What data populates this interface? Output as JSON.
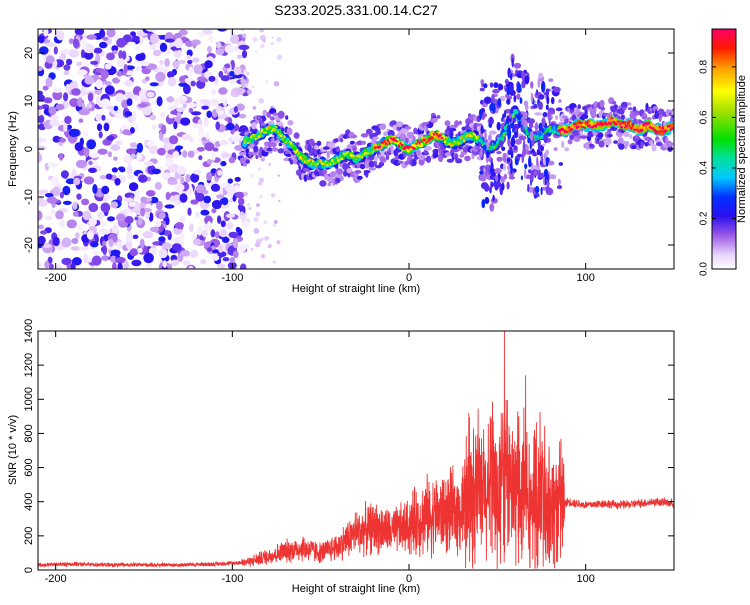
{
  "page": {
    "title": "S233.2025.331.00.14.C27"
  },
  "chart_data": [
    {
      "type": "heatmap",
      "title": "S233.2025.331.00.14.C27",
      "xlabel": "Height of straight line (km)",
      "ylabel": "Frequency (Hz)",
      "xlim": [
        -210,
        150
      ],
      "ylim": [
        -25,
        25
      ],
      "xticks": [
        -200,
        -100,
        0,
        100
      ],
      "yticks": [
        -20,
        -10,
        0,
        10,
        20
      ],
      "colorbar": {
        "label": "Normalized spectral amplitude",
        "range": [
          0,
          0.95
        ],
        "ticks": [
          0.0,
          0.2,
          0.4,
          0.6,
          0.8
        ]
      },
      "ridge": {
        "x": [
          -95,
          -90,
          -85,
          -80,
          -75,
          -70,
          -65,
          -60,
          -55,
          -50,
          -45,
          -40,
          -35,
          -30,
          -25,
          -20,
          -15,
          -10,
          -5,
          0,
          5,
          10,
          15,
          20,
          25,
          30,
          35,
          40,
          45,
          50,
          55,
          60,
          65,
          70,
          75,
          80,
          85,
          90,
          95,
          100,
          105,
          110,
          115,
          120,
          125,
          130,
          135,
          140,
          145,
          150
        ],
        "y": [
          1,
          2,
          3,
          4,
          4,
          2,
          0,
          -2,
          -3,
          -3,
          -3,
          -2,
          -1,
          -2,
          -1,
          0,
          1,
          2,
          1,
          0,
          1,
          2,
          3,
          2,
          1,
          2,
          3,
          2,
          0,
          1,
          4,
          8,
          5,
          2,
          3,
          4,
          4,
          4,
          5,
          5,
          5,
          5,
          6,
          5,
          5,
          4,
          5,
          4,
          4,
          5
        ]
      },
      "noise_region_x": [
        -210,
        -95
      ]
    },
    {
      "type": "line",
      "xlabel": "Height of straight line (km)",
      "ylabel": "SNR (10 * v/v)",
      "xlim": [
        -210,
        150
      ],
      "ylim": [
        0,
        1400
      ],
      "xticks": [
        -200,
        -100,
        0,
        100
      ],
      "yticks": [
        0,
        200,
        400,
        600,
        800,
        1000,
        1200,
        1400
      ],
      "color": "#ee3333",
      "series": [
        {
          "name": "SNR",
          "x": [
            -210,
            -190,
            -170,
            -150,
            -130,
            -110,
            -100,
            -90,
            -80,
            -70,
            -60,
            -50,
            -40,
            -30,
            -20,
            -10,
            0,
            10,
            20,
            30,
            40,
            50,
            55,
            60,
            65,
            70,
            75,
            80,
            85,
            90,
            100,
            110,
            120,
            130,
            140,
            150
          ],
          "y": [
            30,
            35,
            30,
            30,
            30,
            35,
            40,
            50,
            80,
            110,
            130,
            100,
            140,
            220,
            250,
            220,
            260,
            320,
            330,
            350,
            420,
            450,
            480,
            450,
            430,
            420,
            400,
            380,
            370,
            400,
            380,
            390,
            380,
            390,
            400,
            390
          ]
        }
      ],
      "peaks": [
        {
          "x": 54,
          "y": 1400
        },
        {
          "x": 53,
          "y": 920
        },
        {
          "x": 66,
          "y": 1140
        },
        {
          "x": 46,
          "y": 900
        },
        {
          "x": 71,
          "y": 820
        }
      ]
    }
  ]
}
